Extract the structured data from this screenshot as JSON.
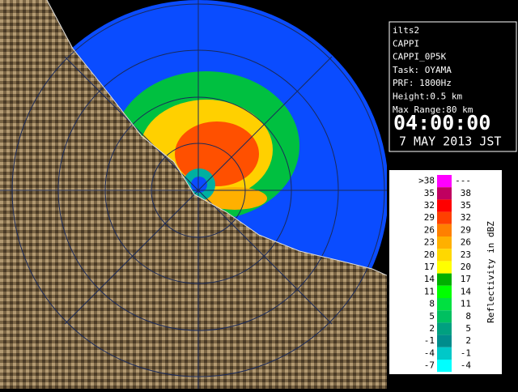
{
  "info": {
    "lines": [
      "ilts2",
      "CAPPI",
      "CAPPI_0P5K",
      "Task: OYAMA",
      "PRF: 1800Hz",
      "Height:0.5 km",
      "Max Range:80 km"
    ],
    "time": "04:00:00",
    "date": "7 MAY 2013 JST"
  },
  "legend": {
    "title": "Reflectivity in dBZ",
    "rows": [
      {
        "low": ">38",
        "high": "---",
        "color": "#ff00ff"
      },
      {
        "low": "35",
        "high": "38",
        "color": "#c00060"
      },
      {
        "low": "32",
        "high": "35",
        "color": "#ff0000"
      },
      {
        "low": "29",
        "high": "32",
        "color": "#ff4000"
      },
      {
        "low": "26",
        "high": "29",
        "color": "#ff8000"
      },
      {
        "low": "23",
        "high": "26",
        "color": "#ffb000"
      },
      {
        "low": "20",
        "high": "23",
        "color": "#ffd800"
      },
      {
        "low": "17",
        "high": "20",
        "color": "#ffff00"
      },
      {
        "low": "14",
        "high": "17",
        "color": "#00b000"
      },
      {
        "low": "11",
        "high": "14",
        "color": "#00ff00"
      },
      {
        "low": "8",
        "high": "11",
        "color": "#00e040"
      },
      {
        "low": "5",
        "high": "8",
        "color": "#00c060"
      },
      {
        "low": "2",
        "high": "5",
        "color": "#00a080"
      },
      {
        "low": "-1",
        "high": "2",
        "color": "#008c8c"
      },
      {
        "low": "-4",
        "high": "-1",
        "color": "#00c8c8"
      },
      {
        "low": "-7",
        "high": "-4",
        "color": "#00ffff"
      }
    ]
  }
}
